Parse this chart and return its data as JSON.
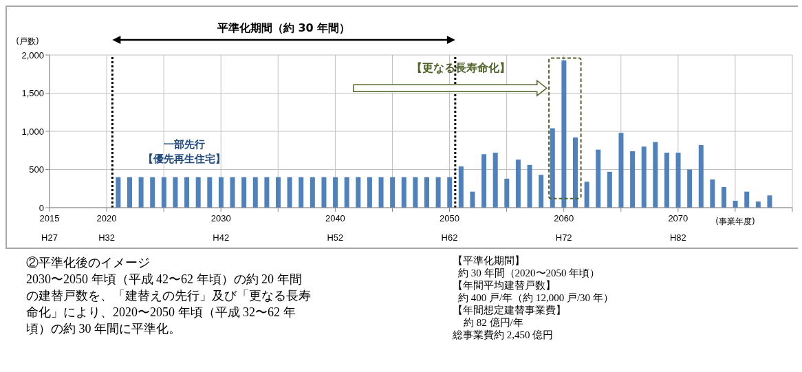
{
  "chart_data": {
    "type": "bar",
    "ylabel": "(戸数)",
    "xlabel": "(事業年度)",
    "color": "#4f81bd",
    "x": [
      2021,
      2022,
      2023,
      2024,
      2025,
      2026,
      2027,
      2028,
      2029,
      2030,
      2031,
      2032,
      2033,
      2034,
      2035,
      2036,
      2037,
      2038,
      2039,
      2040,
      2041,
      2042,
      2043,
      2044,
      2045,
      2046,
      2047,
      2048,
      2049,
      2050,
      2051,
      2052,
      2053,
      2054,
      2055,
      2056,
      2057,
      2058,
      2059,
      2060,
      2061,
      2062,
      2063,
      2064,
      2065,
      2066,
      2067,
      2068,
      2069,
      2070,
      2071,
      2072,
      2073,
      2074,
      2075,
      2076,
      2077,
      2078
    ],
    "values": [
      400,
      400,
      400,
      400,
      400,
      400,
      400,
      400,
      400,
      400,
      400,
      400,
      400,
      400,
      400,
      400,
      400,
      400,
      400,
      400,
      400,
      400,
      400,
      400,
      400,
      400,
      400,
      400,
      400,
      400,
      540,
      210,
      700,
      720,
      380,
      630,
      560,
      430,
      1040,
      1930,
      920,
      340,
      760,
      470,
      980,
      740,
      800,
      860,
      720,
      720,
      500,
      820,
      370,
      270,
      90,
      210,
      80,
      160
    ],
    "xlim": [
      2015,
      2080
    ],
    "xticks": [
      2015,
      2020,
      {
        "value": 2025,
        "label": null
      },
      2030,
      {
        "value": 2035,
        "label": null
      },
      2040,
      {
        "value": 2045,
        "label": null
      },
      2050,
      {
        "value": 2055,
        "label": null
      },
      2060,
      {
        "value": 2065,
        "label": null
      },
      2070,
      {
        "value": 2075,
        "label": null
      },
      {
        "value": 2080,
        "label": null
      }
    ],
    "ylim": [
      0,
      2000
    ],
    "yticks": [
      0,
      500,
      {
        "value": 1000,
        "label": "1,000"
      },
      {
        "value": 1500,
        "label": "1,500"
      },
      {
        "value": 2000,
        "label": "2,000"
      }
    ],
    "grid": true,
    "ref_lines": [
      {
        "axis": "x",
        "value": 2020.5,
        "color": "#000000",
        "line_style": "dotted"
      },
      {
        "axis": "x",
        "value": 2050.5,
        "color": "#000000",
        "line_style": "dotted"
      }
    ],
    "annotations": [
      {
        "text": "平準化期間（約 30 年間）"
      },
      {
        "text": "【更なる長寿命化】"
      },
      {
        "text": "一部先行【優先再生住宅】"
      },
      "②平準化後のイメージ",
      "2030〜2050 年頃（平成 42〜62 年頃）の約 20 年間の建替戸数を、「建替えの先行」及び「更なる長寿命化」により、2020〜2050 年頃（平成 32〜62 年頃）の約 30 年間に平準化。",
      "【平準化期間】",
      "約 30 年間（2020〜2050 年頃）",
      "【年間平均建替戸数】",
      "約 400 戸/年（約 12,000 戸/30 年）",
      "【年間想定建替事業費】",
      "約 82 億円/年",
      "総事業費約 2,450 億円",
      "H27",
      "H32",
      "H42",
      "H52",
      "H62",
      "H72",
      "H82"
    ]
  }
}
